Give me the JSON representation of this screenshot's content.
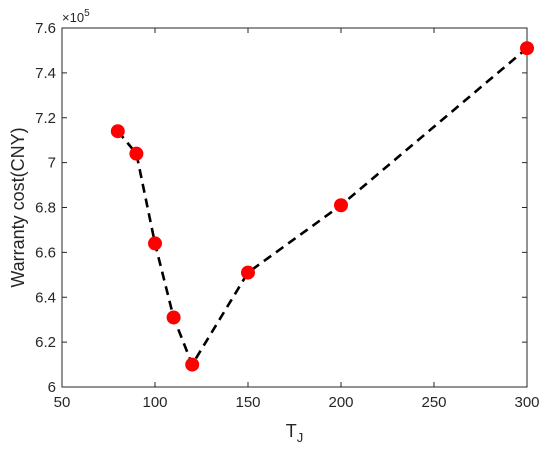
{
  "chart_data": {
    "type": "line",
    "xlabel": "T",
    "xlabel_subscript": "J",
    "ylabel": "Warranty cost(CNY)",
    "y_multiplier_label": "×10",
    "y_multiplier_exponent": "5",
    "xlim": [
      50,
      300
    ],
    "ylim": [
      6.0,
      7.6
    ],
    "xticks": [
      50,
      100,
      150,
      200,
      250,
      300
    ],
    "yticks": [
      6.0,
      6.2,
      6.4,
      6.6,
      6.8,
      7.0,
      7.2,
      7.4,
      7.6
    ],
    "xtick_labels": [
      "50",
      "100",
      "150",
      "200",
      "250",
      "300"
    ],
    "ytick_labels": [
      "6",
      "6.2",
      "6.4",
      "6.6",
      "6.8",
      "7",
      "7.2",
      "7.4",
      "7.6"
    ],
    "grid": false,
    "series": [
      {
        "line_style": "dashed",
        "line_color": "#000000",
        "marker_color": "#ff0000",
        "x": [
          80,
          90,
          100,
          110,
          120,
          150,
          200,
          300
        ],
        "y": [
          7.14,
          7.04,
          6.64,
          6.31,
          6.1,
          6.51,
          6.81,
          7.51
        ]
      }
    ]
  }
}
